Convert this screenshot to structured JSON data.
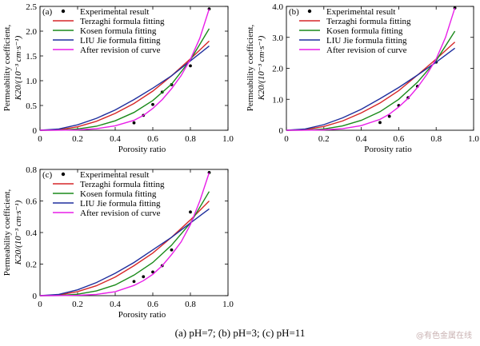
{
  "caption": "(a)  pH=7; (b) pH=3; (c) pH=11",
  "watermark": "@有色金属在线",
  "colors": {
    "experimental": "#000000",
    "terzaghi": "#d62728",
    "kosen": "#1a8a1a",
    "liu": "#1f2f9e",
    "revised": "#e81ee8"
  },
  "chart_data": [
    {
      "type": "line",
      "panel": "(a)",
      "xlabel": "Porosity ratio",
      "ylabel": "Permeability coefficient, K20/(10⁻³ cm·s⁻¹)",
      "ylabel_line1": "Permeability coefficient,",
      "ylabel_line2": "K20/(10⁻³ cm·s⁻¹)",
      "xlim": [
        0,
        1.0
      ],
      "ylim": [
        0,
        2.5
      ],
      "xticks": [
        "0",
        "0.2",
        "0.4",
        "0.6",
        "0.8",
        "1.0"
      ],
      "yticks": [
        "0",
        "0.5",
        "1.0",
        "1.5",
        "2.0",
        "2.5"
      ],
      "legend_location": "top-left",
      "series": [
        {
          "name": "Experimental result",
          "kind": "scatter",
          "color_key": "experimental",
          "x": [
            0.5,
            0.55,
            0.6,
            0.65,
            0.7,
            0.8,
            0.9
          ],
          "y": [
            0.15,
            0.3,
            0.52,
            0.77,
            0.92,
            1.3,
            2.45
          ]
        },
        {
          "name": "Terzaghi formula fitting",
          "kind": "line",
          "color_key": "terzaghi",
          "x": [
            0,
            0.1,
            0.2,
            0.3,
            0.4,
            0.5,
            0.6,
            0.7,
            0.8,
            0.9
          ],
          "y": [
            0,
            0.01,
            0.07,
            0.18,
            0.34,
            0.54,
            0.79,
            1.1,
            1.44,
            1.8
          ]
        },
        {
          "name": "Kosen formula fitting",
          "kind": "line",
          "color_key": "kosen",
          "x": [
            0,
            0.1,
            0.2,
            0.3,
            0.4,
            0.5,
            0.6,
            0.7,
            0.8,
            0.9
          ],
          "y": [
            0,
            0.003,
            0.025,
            0.08,
            0.19,
            0.36,
            0.6,
            0.93,
            1.42,
            2.05
          ]
        },
        {
          "name": "LIU Jie formula fitting",
          "kind": "line",
          "color_key": "liu",
          "x": [
            0,
            0.1,
            0.2,
            0.3,
            0.4,
            0.5,
            0.6,
            0.7,
            0.8,
            0.9
          ],
          "y": [
            0,
            0.025,
            0.11,
            0.24,
            0.41,
            0.62,
            0.85,
            1.1,
            1.4,
            1.7
          ]
        },
        {
          "name": "After revision of curve",
          "kind": "line",
          "color_key": "revised",
          "x": [
            0,
            0.1,
            0.2,
            0.3,
            0.4,
            0.5,
            0.55,
            0.6,
            0.65,
            0.7,
            0.75,
            0.8,
            0.85,
            0.9
          ],
          "y": [
            0,
            0.001,
            0.007,
            0.03,
            0.09,
            0.2,
            0.3,
            0.44,
            0.62,
            0.84,
            1.1,
            1.43,
            1.86,
            2.45
          ]
        }
      ]
    },
    {
      "type": "line",
      "panel": "(b)",
      "xlabel": "Porosity ratio",
      "ylabel": "Permeability coefficient, K20/(10⁻³ cm·s⁻¹)",
      "ylabel_line1": "Permeability coefficient,",
      "ylabel_line2": "K20/(10⁻³ cm·s⁻¹)",
      "xlim": [
        0,
        1.0
      ],
      "ylim": [
        0,
        4.0
      ],
      "xticks": [
        "0",
        "0.2",
        "0.4",
        "0.6",
        "0.8",
        "1.0"
      ],
      "yticks": [
        "0",
        "1.0",
        "2.0",
        "3.0",
        "4.0"
      ],
      "legend_location": "top-left",
      "series": [
        {
          "name": "Experimental result",
          "kind": "scatter",
          "color_key": "experimental",
          "x": [
            0.5,
            0.55,
            0.6,
            0.65,
            0.7,
            0.8,
            0.9
          ],
          "y": [
            0.25,
            0.45,
            0.8,
            1.05,
            1.42,
            2.2,
            3.95
          ]
        },
        {
          "name": "Terzaghi formula fitting",
          "kind": "line",
          "color_key": "terzaghi",
          "x": [
            0,
            0.1,
            0.2,
            0.3,
            0.4,
            0.5,
            0.6,
            0.7,
            0.8,
            0.9
          ],
          "y": [
            0,
            0.02,
            0.12,
            0.3,
            0.56,
            0.88,
            1.28,
            1.78,
            2.3,
            2.85
          ]
        },
        {
          "name": "Kosen formula fitting",
          "kind": "line",
          "color_key": "kosen",
          "x": [
            0,
            0.1,
            0.2,
            0.3,
            0.4,
            0.5,
            0.6,
            0.7,
            0.8,
            0.9
          ],
          "y": [
            0,
            0.005,
            0.04,
            0.14,
            0.32,
            0.6,
            1.0,
            1.55,
            2.25,
            3.2
          ]
        },
        {
          "name": "LIU Jie formula fitting",
          "kind": "line",
          "color_key": "liu",
          "x": [
            0,
            0.1,
            0.2,
            0.3,
            0.4,
            0.5,
            0.6,
            0.7,
            0.8,
            0.9
          ],
          "y": [
            0,
            0.04,
            0.18,
            0.4,
            0.68,
            1.02,
            1.38,
            1.78,
            2.2,
            2.65
          ]
        },
        {
          "name": "After revision of curve",
          "kind": "line",
          "color_key": "revised",
          "x": [
            0,
            0.1,
            0.2,
            0.3,
            0.4,
            0.5,
            0.55,
            0.6,
            0.65,
            0.7,
            0.75,
            0.8,
            0.85,
            0.9
          ],
          "y": [
            0,
            0.002,
            0.012,
            0.05,
            0.15,
            0.35,
            0.52,
            0.75,
            1.03,
            1.38,
            1.8,
            2.3,
            3.0,
            3.95
          ]
        }
      ]
    },
    {
      "type": "line",
      "panel": "(c)",
      "xlabel": "Porosity ratio",
      "ylabel": "Permeability coefficient, K20/(10⁻³ cm·s⁻¹)",
      "ylabel_line1": "Permeability coefficient,",
      "ylabel_line2": "K20/(10⁻³ cm·s⁻¹)",
      "xlim": [
        0,
        1.0
      ],
      "ylim": [
        0,
        0.8
      ],
      "xticks": [
        "0",
        "0.2",
        "0.4",
        "0.6",
        "0.8",
        "1.0"
      ],
      "yticks": [
        "0",
        "0.2",
        "0.4",
        "0.6",
        "0.8"
      ],
      "legend_location": "top-left",
      "series": [
        {
          "name": "Experimental result",
          "kind": "scatter",
          "color_key": "experimental",
          "x": [
            0.5,
            0.55,
            0.6,
            0.65,
            0.7,
            0.8,
            0.9
          ],
          "y": [
            0.09,
            0.12,
            0.15,
            0.19,
            0.29,
            0.53,
            0.78
          ]
        },
        {
          "name": "Terzaghi formula fitting",
          "kind": "line",
          "color_key": "terzaghi",
          "x": [
            0,
            0.1,
            0.2,
            0.3,
            0.4,
            0.5,
            0.6,
            0.7,
            0.8,
            0.9
          ],
          "y": [
            0,
            0.004,
            0.026,
            0.063,
            0.118,
            0.19,
            0.27,
            0.37,
            0.48,
            0.6
          ]
        },
        {
          "name": "Kosen formula fitting",
          "kind": "line",
          "color_key": "kosen",
          "x": [
            0,
            0.1,
            0.2,
            0.3,
            0.4,
            0.5,
            0.6,
            0.7,
            0.8,
            0.9
          ],
          "y": [
            0,
            0.001,
            0.009,
            0.03,
            0.068,
            0.13,
            0.21,
            0.32,
            0.46,
            0.66
          ]
        },
        {
          "name": "LIU Jie formula fitting",
          "kind": "line",
          "color_key": "liu",
          "x": [
            0,
            0.1,
            0.2,
            0.3,
            0.4,
            0.5,
            0.6,
            0.7,
            0.8,
            0.9
          ],
          "y": [
            0,
            0.008,
            0.037,
            0.083,
            0.142,
            0.21,
            0.29,
            0.37,
            0.46,
            0.55
          ]
        },
        {
          "name": "After revision of curve",
          "kind": "line",
          "color_key": "revised",
          "x": [
            0,
            0.1,
            0.2,
            0.3,
            0.4,
            0.5,
            0.55,
            0.6,
            0.65,
            0.7,
            0.75,
            0.8,
            0.85,
            0.9
          ],
          "y": [
            0,
            0.0003,
            0.002,
            0.008,
            0.025,
            0.065,
            0.095,
            0.135,
            0.19,
            0.26,
            0.34,
            0.45,
            0.6,
            0.78
          ]
        }
      ]
    }
  ]
}
